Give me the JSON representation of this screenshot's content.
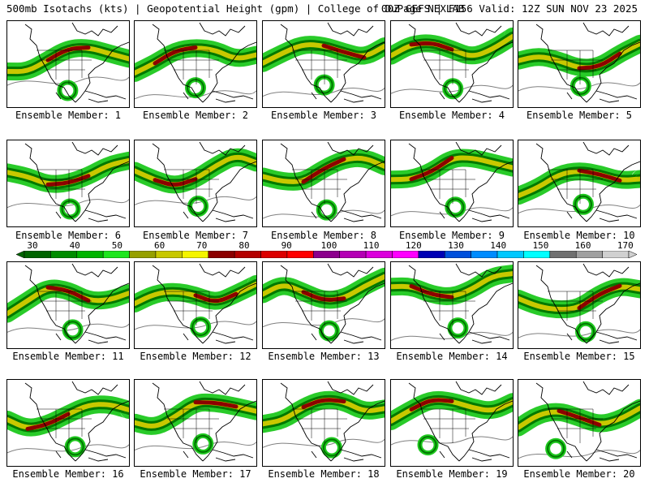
{
  "header": {
    "left": "500mb Isotachs (kts) | Geopotential Height (gpm) | College of DuPage NEXLAB",
    "right": "00Z GEFS | F156 Valid: 12Z SUN NOV 23 2025"
  },
  "legend": {
    "ticks": [
      "30",
      "40",
      "50",
      "60",
      "70",
      "80",
      "90",
      "100",
      "110",
      "120",
      "130",
      "140",
      "150",
      "160",
      "170"
    ],
    "colors": [
      "#006400",
      "#008c00",
      "#00b400",
      "#1ee61e",
      "#96a000",
      "#c8c800",
      "#f5f500",
      "#8c0000",
      "#b40000",
      "#dc0000",
      "#ff0000",
      "#8c008c",
      "#b400b4",
      "#dc00dc",
      "#ff00ff",
      "#0000b4",
      "#0050dc",
      "#008cff",
      "#00c8ff",
      "#00ffff",
      "#707070",
      "#a0a0a0",
      "#d0d0d0"
    ]
  },
  "colors": {
    "jet_outer": "#1ec81e",
    "jet_mid": "#007800",
    "jet_core_yellow": "#c8c800",
    "jet_core_max": "#8c0000",
    "borders": "#000000",
    "height_contour": "#808080"
  },
  "panels": [
    {
      "caption": "Ensemble Member: 1",
      "member": 1
    },
    {
      "caption": "Ensemble Member: 2",
      "member": 2
    },
    {
      "caption": "Ensemble Member: 3",
      "member": 3
    },
    {
      "caption": "Ensemble Member: 4",
      "member": 4
    },
    {
      "caption": "Ensemble Member: 5",
      "member": 5
    },
    {
      "caption": "Ensemble Member: 6",
      "member": 6
    },
    {
      "caption": "Ensemble Member: 7",
      "member": 7
    },
    {
      "caption": "Ensemble Member: 8",
      "member": 8
    },
    {
      "caption": "Ensemble Member: 9",
      "member": 9
    },
    {
      "caption": "Ensemble Member: 10",
      "member": 10
    },
    {
      "caption": "Ensemble Member: 11",
      "member": 11
    },
    {
      "caption": "Ensemble Member: 12",
      "member": 12
    },
    {
      "caption": "Ensemble Member: 13",
      "member": 13
    },
    {
      "caption": "Ensemble Member: 14",
      "member": 14
    },
    {
      "caption": "Ensemble Member: 15",
      "member": 15
    },
    {
      "caption": "Ensemble Member: 16",
      "member": 16
    },
    {
      "caption": "Ensemble Member: 17",
      "member": 17
    },
    {
      "caption": "Ensemble Member: 18",
      "member": 18
    },
    {
      "caption": "Ensemble Member: 19",
      "member": 19
    },
    {
      "caption": "Ensemble Member: 20",
      "member": 20
    }
  ]
}
